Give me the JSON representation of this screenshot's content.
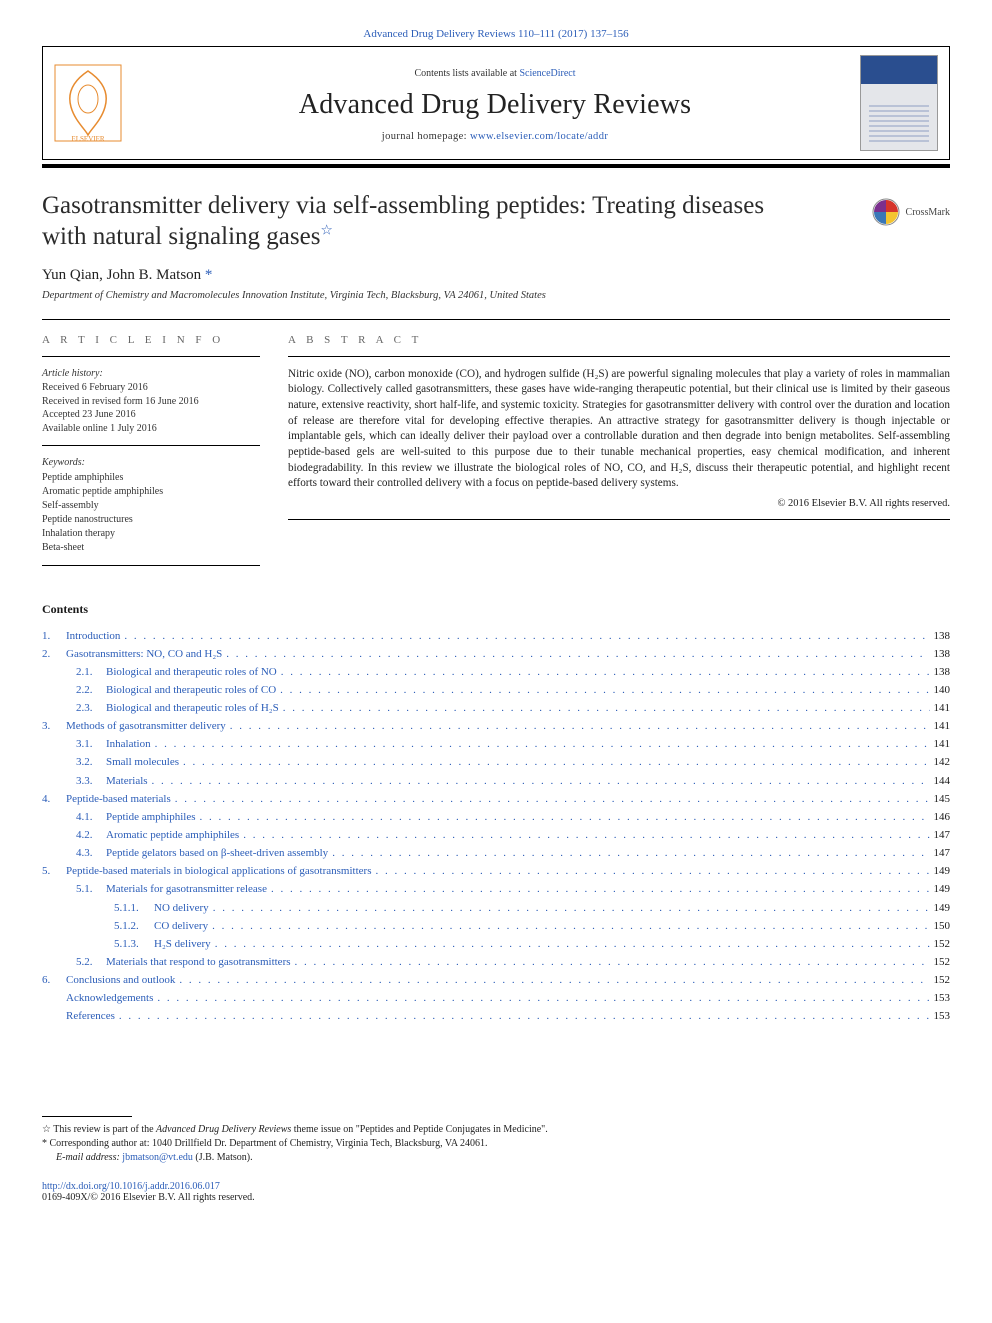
{
  "citation": "Advanced Drug Delivery Reviews 110–111 (2017) 137–156",
  "header": {
    "contents_pre": "Contents lists available at ",
    "contents_link": "ScienceDirect",
    "journal": "Advanced Drug Delivery Reviews",
    "homepage_pre": "journal homepage: ",
    "homepage_link": "www.elsevier.com/locate/addr"
  },
  "title_line1": "Gasotransmitter delivery via self-assembling peptides: Treating diseases",
  "title_line2": "with natural signaling gases",
  "crossmark": "CrossMark",
  "authors": "Yun Qian, John B. Matson ",
  "affiliation": "Department of Chemistry and Macromolecules Innovation Institute, Virginia Tech, Blacksburg, VA 24061, United States",
  "left": {
    "info_heading": "A R T I C L E   I N F O",
    "history_label": "Article history:",
    "h1": "Received 6 February 2016",
    "h2": "Received in revised form 16 June 2016",
    "h3": "Accepted 23 June 2016",
    "h4": "Available online 1 July 2016",
    "kw_label": "Keywords:",
    "kw": [
      "Peptide amphiphiles",
      "Aromatic peptide amphiphiles",
      "Self-assembly",
      "Peptide nanostructures",
      "Inhalation therapy",
      "Beta-sheet"
    ]
  },
  "right": {
    "abs_heading": "A B S T R A C T",
    "abstract": "Nitric oxide (NO), carbon monoxide (CO), and hydrogen sulfide (H₂S) are powerful signaling molecules that play a variety of roles in mammalian biology. Collectively called gasotransmitters, these gases have wide-ranging therapeutic potential, but their clinical use is limited by their gaseous nature, extensive reactivity, short half-life, and systemic toxicity. Strategies for gasotransmitter delivery with control over the duration and location of release are therefore vital for developing effective therapies. An attractive strategy for gasotransmitter delivery is though injectable or implantable gels, which can ideally deliver their payload over a controllable duration and then degrade into benign metabolites. Self-assembling peptide-based gels are well-suited to this purpose due to their tunable mechanical properties, easy chemical modification, and inherent biodegradability. In this review we illustrate the biological roles of NO, CO, and H₂S, discuss their therapeutic potential, and highlight recent efforts toward their controlled delivery with a focus on peptide-based delivery systems.",
    "copyright": "© 2016 Elsevier B.V. All rights reserved."
  },
  "contents_label": "Contents",
  "toc": [
    {
      "n": "1.",
      "t": "Introduction",
      "p": "138",
      "lvl": 0
    },
    {
      "n": "2.",
      "t": "Gasotransmitters: NO, CO and H₂S",
      "p": "138",
      "lvl": 0
    },
    {
      "n": "2.1.",
      "t": "Biological and therapeutic roles of NO",
      "p": "138",
      "lvl": 1
    },
    {
      "n": "2.2.",
      "t": "Biological and therapeutic roles of CO",
      "p": "140",
      "lvl": 1
    },
    {
      "n": "2.3.",
      "t": "Biological and therapeutic roles of H₂S",
      "p": "141",
      "lvl": 1
    },
    {
      "n": "3.",
      "t": "Methods of gasotransmitter delivery",
      "p": "141",
      "lvl": 0
    },
    {
      "n": "3.1.",
      "t": "Inhalation",
      "p": "141",
      "lvl": 1
    },
    {
      "n": "3.2.",
      "t": "Small molecules",
      "p": "142",
      "lvl": 1
    },
    {
      "n": "3.3.",
      "t": "Materials",
      "p": "144",
      "lvl": 1
    },
    {
      "n": "4.",
      "t": "Peptide-based materials",
      "p": "145",
      "lvl": 0
    },
    {
      "n": "4.1.",
      "t": "Peptide amphiphiles",
      "p": "146",
      "lvl": 1
    },
    {
      "n": "4.2.",
      "t": "Aromatic peptide amphiphiles",
      "p": "147",
      "lvl": 1
    },
    {
      "n": "4.3.",
      "t": "Peptide gelators based on β-sheet-driven assembly",
      "p": "147",
      "lvl": 1
    },
    {
      "n": "5.",
      "t": "Peptide-based materials in biological applications of gasotransmitters",
      "p": "149",
      "lvl": 0
    },
    {
      "n": "5.1.",
      "t": "Materials for gasotransmitter release",
      "p": "149",
      "lvl": 1
    },
    {
      "n": "5.1.1.",
      "t": "NO delivery",
      "p": "149",
      "lvl": 2
    },
    {
      "n": "5.1.2.",
      "t": "CO delivery",
      "p": "150",
      "lvl": 2
    },
    {
      "n": "5.1.3.",
      "t": "H₂S delivery",
      "p": "152",
      "lvl": 2
    },
    {
      "n": "5.2.",
      "t": "Materials that respond to gasotransmitters",
      "p": "152",
      "lvl": 1
    },
    {
      "n": "6.",
      "t": "Conclusions and outlook",
      "p": "152",
      "lvl": 0
    },
    {
      "n": "",
      "t": "Acknowledgements",
      "p": "153",
      "lvl": 0
    },
    {
      "n": "",
      "t": "References",
      "p": "153",
      "lvl": 0
    }
  ],
  "footnotes": {
    "f1_pre": "☆  This review is part of the ",
    "f1_mid": "Advanced Drug Delivery Reviews",
    "f1_post": " theme issue on \"Peptides and Peptide Conjugates in Medicine\".",
    "f2": "*  Corresponding author at: 1040 Drillfield Dr. Department of Chemistry, Virginia Tech, Blacksburg, VA 24061.",
    "f3_pre": "E-mail address: ",
    "f3_link": "jbmatson@vt.edu",
    "f3_post": " (J.B. Matson)."
  },
  "doi": {
    "link": "http://dx.doi.org/10.1016/j.addr.2016.06.017",
    "issn": "0169-409X/© 2016 Elsevier B.V. All rights reserved."
  },
  "colors": {
    "link": "#2b5db8",
    "text": "#1a1a1a",
    "rule": "#000000"
  }
}
